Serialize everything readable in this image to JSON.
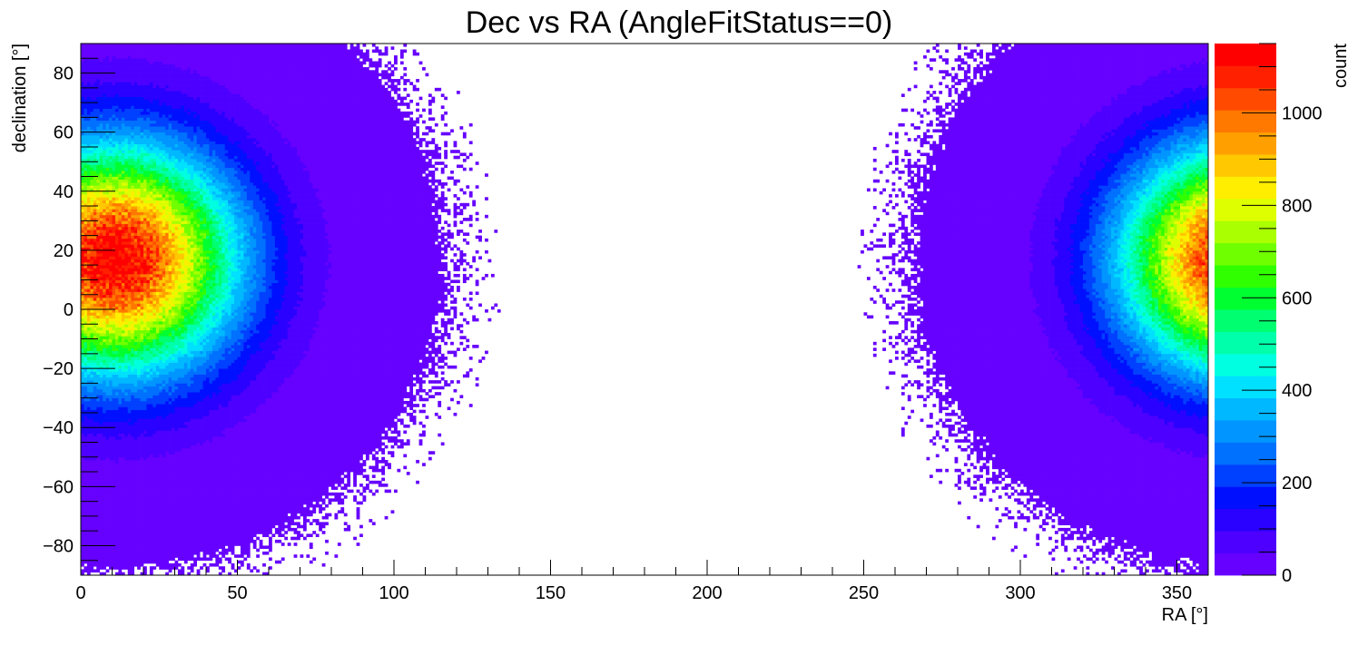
{
  "chart_data": {
    "type": "heatmap",
    "title": "Dec vs RA (AngleFitStatus==0)",
    "xlabel": "RA [°]",
    "ylabel": "declination [°]",
    "zlabel": "count",
    "xlim": [
      0,
      360
    ],
    "ylim": [
      -90,
      90
    ],
    "zlim": [
      0,
      1150
    ],
    "x_ticks": [
      0,
      50,
      100,
      150,
      200,
      250,
      300,
      350
    ],
    "y_ticks": [
      -80,
      -60,
      -40,
      -20,
      0,
      20,
      40,
      60,
      80
    ],
    "z_ticks": [
      0,
      200,
      400,
      600,
      800,
      1000
    ],
    "x_tick_labels": [
      "0",
      "50",
      "100",
      "150",
      "200",
      "250",
      "300",
      "350"
    ],
    "y_tick_labels": [
      "−80",
      "−60",
      "−40",
      "−20",
      "0",
      "20",
      "40",
      "60",
      "80"
    ],
    "z_tick_labels": [
      "0",
      "200",
      "400",
      "600",
      "800",
      "1000"
    ],
    "grid": false,
    "colormap": "rainbow",
    "palette": [
      "#6600ff",
      "#4d00ff",
      "#2a00ff",
      "#0010ff",
      "#0040ff",
      "#0070ff",
      "#0095ff",
      "#00b8ff",
      "#00e0ff",
      "#00ffe0",
      "#00ffaa",
      "#00ff70",
      "#00ff30",
      "#30ff00",
      "#70ff00",
      "#aaff00",
      "#ddff00",
      "#ffee00",
      "#ffc800",
      "#ffa000",
      "#ff7800",
      "#ff4a00",
      "#ff2000",
      "#ff0000"
    ],
    "hotspot": {
      "ra": 11,
      "dec": 17,
      "peak_count": 1150
    },
    "description_of_distribution": "Counts concentrated around RA≈11°, Dec≈17°, wrapping around RA=360°; sparse region at RA 150–250° high declination"
  }
}
